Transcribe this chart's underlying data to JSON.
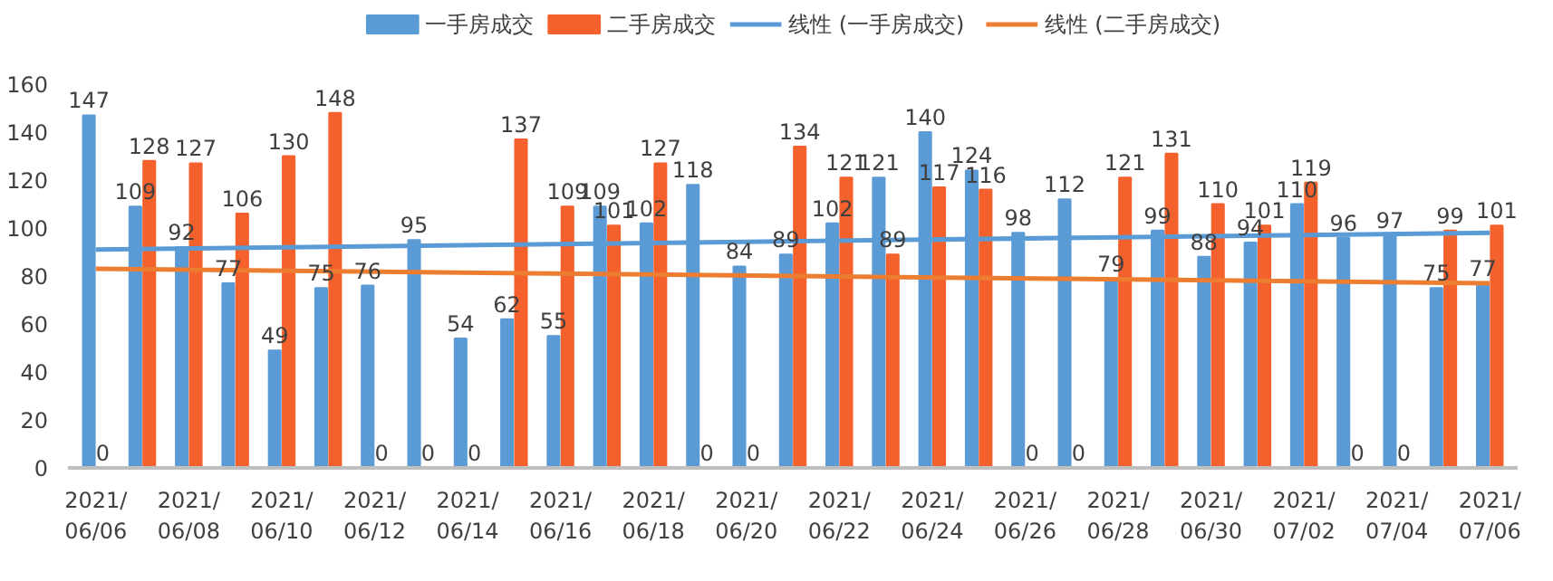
{
  "chart_data": {
    "type": "bar",
    "categories": [
      "2021/\n06/06",
      null,
      "2021/\n06/08",
      null,
      "2021/\n06/10",
      null,
      "2021/\n06/12",
      null,
      "2021/\n06/14",
      null,
      "2021/\n06/16",
      null,
      "2021/\n06/18",
      null,
      "2021/\n06/20",
      null,
      "2021/\n06/22",
      null,
      "2021/\n06/24",
      null,
      "2021/\n06/26",
      null,
      "2021/\n06/28",
      null,
      "2021/\n06/30",
      null,
      "2021/\n07/02",
      null,
      "2021/\n07/04",
      null,
      "2021/\n07/06"
    ],
    "series": [
      {
        "name": "一手房成交",
        "color": "#5b9bd5",
        "values": [
          147,
          109,
          92,
          77,
          49,
          75,
          76,
          95,
          54,
          62,
          55,
          109,
          102,
          118,
          84,
          89,
          102,
          121,
          140,
          124,
          98,
          112,
          79,
          99,
          88,
          94,
          110,
          96,
          97,
          75,
          77
        ]
      },
      {
        "name": "二手房成交",
        "color": "#f4612c",
        "values": [
          0,
          128,
          127,
          106,
          130,
          148,
          0,
          0,
          0,
          137,
          109,
          101,
          127,
          0,
          0,
          134,
          121,
          89,
          117,
          116,
          0,
          0,
          121,
          131,
          110,
          101,
          119,
          0,
          0,
          99,
          101
        ]
      },
      {
        "name": "线性 (一手房成交)",
        "type": "line",
        "color": "#5b9bd5",
        "x": [
          "2021/\n06/06",
          "2021/\n07/06"
        ],
        "values": [
          91,
          98
        ],
        "value_labels": [
          null,
          null
        ]
      },
      {
        "name": "线性 (二手房成交)",
        "type": "line",
        "color": "#ed7d31",
        "x": [
          "2021/\n06/06",
          "2021/\n07/06"
        ],
        "values": [
          83,
          77
        ],
        "value_labels": [
          null,
          null
        ]
      }
    ],
    "ylim": [
      0,
      160
    ],
    "yticks": [
      0,
      20,
      40,
      60,
      80,
      100,
      120,
      140,
      160
    ],
    "data_labels": true,
    "legend": "top",
    "grid": false
  }
}
